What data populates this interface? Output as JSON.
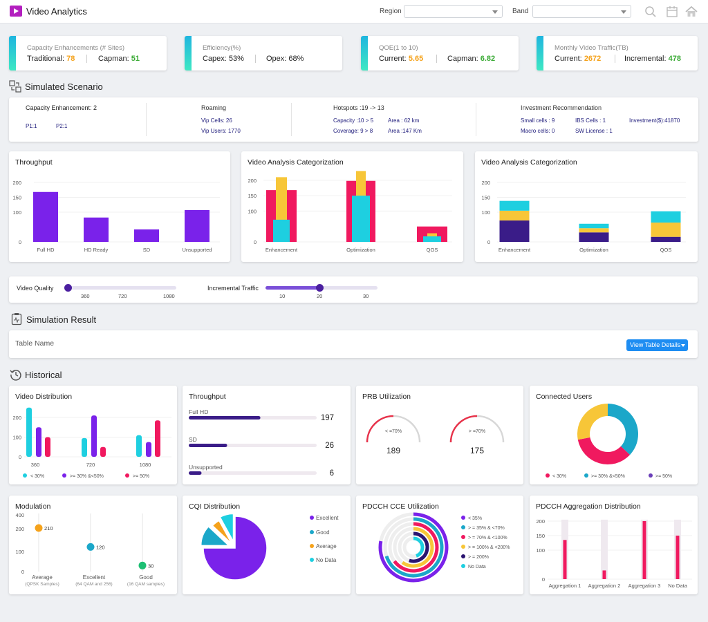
{
  "app": {
    "title": "Video Analytics",
    "region_label": "Region",
    "band_label": "Band",
    "region_value": "",
    "band_value": ""
  },
  "kpis": [
    {
      "title": "Capacity Enhancements (# Sites)",
      "a_label": "Traditional:",
      "a_value": "78",
      "b_label": "Capman:",
      "b_value": "51"
    },
    {
      "title": "Efficiency(%)",
      "a_label": "Capex:",
      "a_value": "53%",
      "b_label": "Opex:",
      "b_value": "68%"
    },
    {
      "title": "QOE(1 to 10)",
      "a_label": "Current:",
      "a_value": "5.65",
      "b_label": "Capman:",
      "b_value": "6.82"
    },
    {
      "title": "Monthly Video Traffic(TB)",
      "a_label": "Current:",
      "a_value": "2672",
      "b_label": "Incremental:",
      "b_value": "478"
    }
  ],
  "simulated": {
    "title": "Simulated Scenario",
    "cap_title": "Capacity Enhancement: 2",
    "p1": "P1:1",
    "p2": "P2:1",
    "roam_title": "Roaming",
    "vip_cells": "Vip Cells: 26",
    "vip_users": "Vip Users: 1770",
    "hot_title": "Hotspots :19 -> 13",
    "capacity": "Capacity :10 > 5",
    "coverage": "Coverage: 9 > 8",
    "area1": "Area : 62 km",
    "area2": "Area :147 Km",
    "inv_title": "Investment Recommendation",
    "small": "Small cells : 9",
    "macro": "Macro cells: 0",
    "ibs": "IBS Cells : 1",
    "sw": "SW License : 1",
    "invest": "Investment($):41870"
  },
  "sliders": {
    "vq_label": "Video Quality",
    "vq_ticks": [
      "360",
      "720",
      "1080"
    ],
    "vq_value": 0,
    "it_label": "Incremental Traffic",
    "it_ticks": [
      "10",
      "20",
      "30"
    ],
    "it_value": 0.48
  },
  "result": {
    "title": "Simulation Result",
    "table_name": "Table Name",
    "button": "View Table Details"
  },
  "historical": {
    "title": "Historical"
  },
  "chart_data": [
    {
      "id": "throughput_sim",
      "type": "bar",
      "title": "Throughput",
      "categories": [
        "Full HD",
        "HD Ready",
        "SD",
        "Unsupported"
      ],
      "values": [
        168,
        82,
        42,
        107
      ],
      "yticks": [
        "200",
        "150",
        "100",
        "0"
      ],
      "ylim": [
        0,
        200
      ],
      "colors": {
        "bar": "#7a22ea"
      }
    },
    {
      "id": "vac1",
      "type": "bar",
      "title": "Video Analysis Categorization",
      "categories": [
        "Enhancement",
        "Optimization",
        "QOS"
      ],
      "series": [
        {
          "values": [
            168,
            198,
            50
          ],
          "color": "#f0195f"
        },
        {
          "values": [
            210,
            230,
            28
          ],
          "color": "#f7c638"
        },
        {
          "values": [
            72,
            150,
            18
          ],
          "color": "#1ecfe0"
        }
      ],
      "yticks": [
        "200",
        "150",
        "100",
        "0"
      ],
      "ylim": [
        0,
        240
      ]
    },
    {
      "id": "vac2",
      "type": "bar",
      "title": "Video Analysis Categorization",
      "stacked": true,
      "categories": [
        "Enhancement",
        "Optimization",
        "QOS"
      ],
      "series": [
        {
          "values": [
            72,
            32,
            17
          ],
          "color": "#3a1c88"
        },
        {
          "values": [
            33,
            14,
            48
          ],
          "color": "#f7c638"
        },
        {
          "values": [
            33,
            15,
            38
          ],
          "color": "#1ecfe0"
        }
      ],
      "yticks": [
        "200",
        "150",
        "100",
        "0"
      ],
      "ylim": [
        0,
        200
      ]
    },
    {
      "id": "video_distribution",
      "type": "bar",
      "title": "Video Distribution",
      "categories": [
        "360",
        "720",
        "1080"
      ],
      "series": [
        {
          "name": "< 30%",
          "values": [
            250,
            95,
            110
          ],
          "color": "#1ecfe0"
        },
        {
          "name": ">= 30% &<50%",
          "values": [
            150,
            210,
            75
          ],
          "color": "#7a22ea"
        },
        {
          "name": ">= 50%",
          "values": [
            100,
            50,
            185
          ],
          "color": "#f0195f"
        }
      ],
      "yticks": [
        "200",
        "100",
        "0"
      ],
      "ylim": [
        0,
        250
      ]
    },
    {
      "id": "throughput_hist",
      "type": "bar",
      "orientation": "horizontal",
      "title": "Throughput",
      "categories": [
        "Full HD",
        "SD",
        "Unsupported"
      ],
      "values": [
        197,
        26,
        6
      ],
      "fills": [
        0.56,
        0.3,
        0.1
      ],
      "colors": {
        "bar": "#3a1c88",
        "track": "#efe9ef"
      }
    },
    {
      "id": "prb",
      "type": "gauge",
      "title": "PRB Utilization",
      "gauges": [
        {
          "label": "< =70%",
          "value": 189,
          "fill": 0.5
        },
        {
          "label": "> =70%",
          "value": 175,
          "fill": 0.5
        }
      ]
    },
    {
      "id": "connected_users",
      "type": "pie",
      "donut": true,
      "title": "Connected Users",
      "series": [
        {
          "name": "< 30%",
          "value": 35,
          "color": "#f0195f"
        },
        {
          "name": ">= 30% &<50%",
          "value": 37,
          "color": "#1ba7c9"
        },
        {
          "name": ">= 50%",
          "value": 28,
          "color": "#f7c638"
        }
      ]
    },
    {
      "id": "modulation",
      "type": "scatter",
      "title": "Modulation",
      "categories": [
        "Average",
        "Excellent",
        "Good"
      ],
      "subtitles": [
        "(QPSK Samples)",
        "(64 QAM and 256)",
        "(16 QAM samples)"
      ],
      "values": [
        210,
        120,
        30
      ],
      "colors": [
        "#f5a21b",
        "#1ba7c9",
        "#1dbf73"
      ],
      "yticks": [
        "400",
        "200",
        "100",
        "0"
      ],
      "ylim": [
        0,
        400
      ]
    },
    {
      "id": "cqi",
      "type": "pie",
      "title": "CQI Distribution",
      "series": [
        {
          "name": "Excellent",
          "value": 75,
          "color": "#7a22ea"
        },
        {
          "name": "Good",
          "value": 12,
          "color": "#1ba7c9"
        },
        {
          "name": "Average",
          "value": 5,
          "color": "#f5a21b"
        },
        {
          "name": "No Data",
          "value": 8,
          "color": "#1ecfe0"
        }
      ]
    },
    {
      "id": "pdcch_cce",
      "type": "radial",
      "title": "PDCCH CCE Utilization",
      "series": [
        {
          "name": "< 35%",
          "value": 0.78,
          "color": "#7a22ea"
        },
        {
          "name": "> = 35% & <70%",
          "value": 0.7,
          "color": "#1ba7c9"
        },
        {
          "name": "> = 70% & <100%",
          "value": 0.65,
          "color": "#f0195f"
        },
        {
          "name": "> = 100% & <200%",
          "value": 0.6,
          "color": "#f7c638"
        },
        {
          "name": "> = 200%",
          "value": 0.55,
          "color": "#2a1470"
        },
        {
          "name": "No Data",
          "value": 0.45,
          "color": "#1ecfe0"
        }
      ]
    },
    {
      "id": "pdcch_agg",
      "type": "bar",
      "title": "PDCCH Aggregation Distribution",
      "categories": [
        "Aggregation 1",
        "Aggregation 2",
        "Aggregation 3",
        "No Data"
      ],
      "values": [
        135,
        30,
        200,
        150
      ],
      "max": 205,
      "yticks": [
        "200",
        "150",
        "100",
        "0"
      ],
      "ylim": [
        0,
        200
      ],
      "colors": {
        "bar": "#f0195f",
        "track": "#efe9ef"
      }
    }
  ]
}
